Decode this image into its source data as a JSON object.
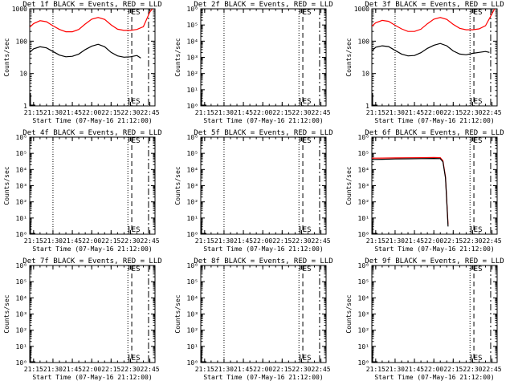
{
  "panel_title_suffix": "BLACK = Events, RED = LLD",
  "x_axis_label": "Start Time (07-May-16 21:12:00)",
  "y_axis_label": "Counts/sec",
  "x_tick_labels": [
    "21:15",
    "21:30",
    "21:45",
    "22:00",
    "22:15",
    "22:30",
    "22:45"
  ],
  "marker_label": "ES",
  "colors": {
    "events": "#000000",
    "lld": "#ff0000",
    "axes": "#000000",
    "background": "#ffffff"
  },
  "chart_data": [
    {
      "type": "line",
      "title": "Det 1f",
      "y_scale": "log",
      "ylim": [
        1,
        1000
      ],
      "y_tick_labels": [
        "1",
        "10",
        "100",
        "1000"
      ],
      "vlines": [
        {
          "x": "21:30",
          "style": "dotted"
        },
        {
          "x": "22:28",
          "style": "dotted"
        },
        {
          "x": "22:31",
          "style": "dashed"
        },
        {
          "x": "22:44",
          "style": "dashdot"
        }
      ],
      "es_marker_x": "22:32",
      "series": [
        {
          "role": "events",
          "x": [
            "21:12",
            "21:15",
            "21:20",
            "21:25",
            "21:30",
            "21:35",
            "21:40",
            "21:45",
            "21:50",
            "21:55",
            "22:00",
            "22:05",
            "22:10",
            "22:15",
            "22:20",
            "22:25",
            "22:30",
            "22:35",
            "22:38"
          ],
          "values": [
            45,
            58,
            67,
            62,
            48,
            37,
            33,
            34,
            40,
            55,
            70,
            80,
            67,
            45,
            35,
            32,
            33,
            36,
            30
          ]
        },
        {
          "role": "lld",
          "x": [
            "21:12",
            "21:15",
            "21:20",
            "21:25",
            "21:30",
            "21:35",
            "21:40",
            "21:45",
            "21:50",
            "21:55",
            "22:00",
            "22:05",
            "22:10",
            "22:15",
            "22:20",
            "22:25",
            "22:30",
            "22:35",
            "22:40",
            "22:45",
            "22:47"
          ],
          "values": [
            270,
            350,
            430,
            400,
            300,
            230,
            195,
            195,
            230,
            340,
            480,
            540,
            470,
            320,
            235,
            215,
            215,
            230,
            280,
            800,
            1000
          ]
        }
      ]
    },
    {
      "type": "line",
      "title": "Det 2f",
      "y_scale": "log",
      "ylim": [
        1,
        1000000
      ],
      "y_tick_labels": [
        "10⁰",
        "10¹",
        "10²",
        "10³",
        "10⁴",
        "10⁵",
        "10⁶"
      ],
      "vlines": [
        {
          "x": "21:30",
          "style": "dotted"
        },
        {
          "x": "22:28",
          "style": "dotted"
        },
        {
          "x": "22:31",
          "style": "dashed"
        },
        {
          "x": "22:44",
          "style": "dashdot"
        }
      ],
      "es_marker_x": "22:32",
      "series": []
    },
    {
      "type": "line",
      "title": "Det 3f",
      "y_scale": "log",
      "ylim": [
        1,
        1000
      ],
      "y_tick_labels": [
        "1",
        "10",
        "100",
        "1000"
      ],
      "vlines": [
        {
          "x": "21:30",
          "style": "dotted"
        },
        {
          "x": "22:28",
          "style": "dotted"
        },
        {
          "x": "22:31",
          "style": "dashed"
        },
        {
          "x": "22:44",
          "style": "dashdot"
        }
      ],
      "es_marker_x": "22:32",
      "series": [
        {
          "role": "events",
          "x": [
            "21:12",
            "21:15",
            "21:20",
            "21:25",
            "21:30",
            "21:35",
            "21:40",
            "21:45",
            "21:50",
            "21:55",
            "22:00",
            "22:05",
            "22:10",
            "22:15",
            "22:20",
            "22:25",
            "22:30",
            "22:35",
            "22:40",
            "22:43"
          ],
          "values": [
            50,
            65,
            72,
            68,
            52,
            40,
            35,
            36,
            44,
            60,
            75,
            85,
            72,
            50,
            40,
            38,
            42,
            45,
            48,
            45
          ]
        },
        {
          "role": "lld",
          "x": [
            "21:12",
            "21:15",
            "21:20",
            "21:25",
            "21:30",
            "21:35",
            "21:40",
            "21:45",
            "21:50",
            "21:55",
            "22:00",
            "22:05",
            "22:10",
            "22:15",
            "22:20",
            "22:25",
            "22:30",
            "22:35",
            "22:40",
            "22:45",
            "22:47"
          ],
          "values": [
            290,
            370,
            440,
            410,
            310,
            240,
            200,
            200,
            235,
            345,
            480,
            540,
            470,
            330,
            250,
            225,
            225,
            240,
            300,
            700,
            1000
          ]
        }
      ]
    },
    {
      "type": "line",
      "title": "Det 4f",
      "y_scale": "log",
      "ylim": [
        1,
        1000000
      ],
      "y_tick_labels": [
        "10⁰",
        "10¹",
        "10²",
        "10³",
        "10⁴",
        "10⁵",
        "10⁶"
      ],
      "vlines": [
        {
          "x": "21:30",
          "style": "dotted"
        },
        {
          "x": "22:28",
          "style": "dotted"
        },
        {
          "x": "22:31",
          "style": "dashed"
        },
        {
          "x": "22:44",
          "style": "dashdot"
        }
      ],
      "es_marker_x": "22:32",
      "series": []
    },
    {
      "type": "line",
      "title": "Det 5f",
      "y_scale": "log",
      "ylim": [
        1,
        1000000
      ],
      "y_tick_labels": [
        "10⁰",
        "10¹",
        "10²",
        "10³",
        "10⁴",
        "10⁵",
        "10⁶"
      ],
      "vlines": [
        {
          "x": "21:30",
          "style": "dotted"
        },
        {
          "x": "22:28",
          "style": "dotted"
        },
        {
          "x": "22:31",
          "style": "dashed"
        },
        {
          "x": "22:44",
          "style": "dashdot"
        }
      ],
      "es_marker_x": "22:32",
      "series": []
    },
    {
      "type": "line",
      "title": "Det 6f",
      "y_scale": "log",
      "ylim": [
        1,
        1000000
      ],
      "y_tick_labels": [
        "10⁰",
        "10¹",
        "10²",
        "10³",
        "10⁴",
        "10⁵",
        "10⁶"
      ],
      "vlines": [
        {
          "x": "22:28",
          "style": "dotted"
        },
        {
          "x": "22:31",
          "style": "dashed"
        },
        {
          "x": "22:44",
          "style": "dashdot"
        }
      ],
      "es_marker_x": "22:32",
      "series": [
        {
          "role": "events",
          "x": [
            "21:12",
            "21:20",
            "21:30",
            "21:40",
            "21:50",
            "22:00",
            "22:05",
            "22:07",
            "22:09",
            "22:10",
            "22:11"
          ],
          "values": [
            42000,
            43000,
            45000,
            46000,
            47000,
            48000,
            47000,
            30000,
            3000,
            100,
            3
          ]
        },
        {
          "role": "lld",
          "x": [
            "21:12",
            "21:20",
            "21:30",
            "21:40",
            "21:50",
            "22:00",
            "22:05",
            "22:07",
            "22:09",
            "22:10",
            "22:11"
          ],
          "values": [
            50000,
            51000,
            52000,
            53000,
            54000,
            55000,
            54000,
            35000,
            3500,
            120,
            4
          ]
        }
      ]
    },
    {
      "type": "line",
      "title": "Det 7f",
      "y_scale": "log",
      "ylim": [
        1,
        1000000
      ],
      "y_tick_labels": [
        "10⁰",
        "10¹",
        "10²",
        "10³",
        "10⁴",
        "10⁵",
        "10⁶"
      ],
      "vlines": [
        {
          "x": "22:28",
          "style": "dotted"
        },
        {
          "x": "22:31",
          "style": "dashed"
        },
        {
          "x": "22:44",
          "style": "dashdot"
        }
      ],
      "es_marker_x": "22:32",
      "series": []
    },
    {
      "type": "line",
      "title": "Det 8f",
      "y_scale": "log",
      "ylim": [
        1,
        1000000
      ],
      "y_tick_labels": [
        "10⁰",
        "10¹",
        "10²",
        "10³",
        "10⁴",
        "10⁵",
        "10⁶"
      ],
      "vlines": [
        {
          "x": "21:30",
          "style": "dotted"
        },
        {
          "x": "22:28",
          "style": "dotted"
        },
        {
          "x": "22:31",
          "style": "dashed"
        },
        {
          "x": "22:44",
          "style": "dashdot"
        }
      ],
      "es_marker_x": "22:32",
      "series": []
    },
    {
      "type": "line",
      "title": "Det 9f",
      "y_scale": "log",
      "ylim": [
        1,
        1000000
      ],
      "y_tick_labels": [
        "10⁰",
        "10¹",
        "10²",
        "10³",
        "10⁴",
        "10⁵",
        "10⁶"
      ],
      "vlines": [
        {
          "x": "22:28",
          "style": "dotted"
        },
        {
          "x": "22:31",
          "style": "dashed"
        },
        {
          "x": "22:44",
          "style": "dashdot"
        }
      ],
      "es_marker_x": "22:32",
      "series": []
    }
  ]
}
